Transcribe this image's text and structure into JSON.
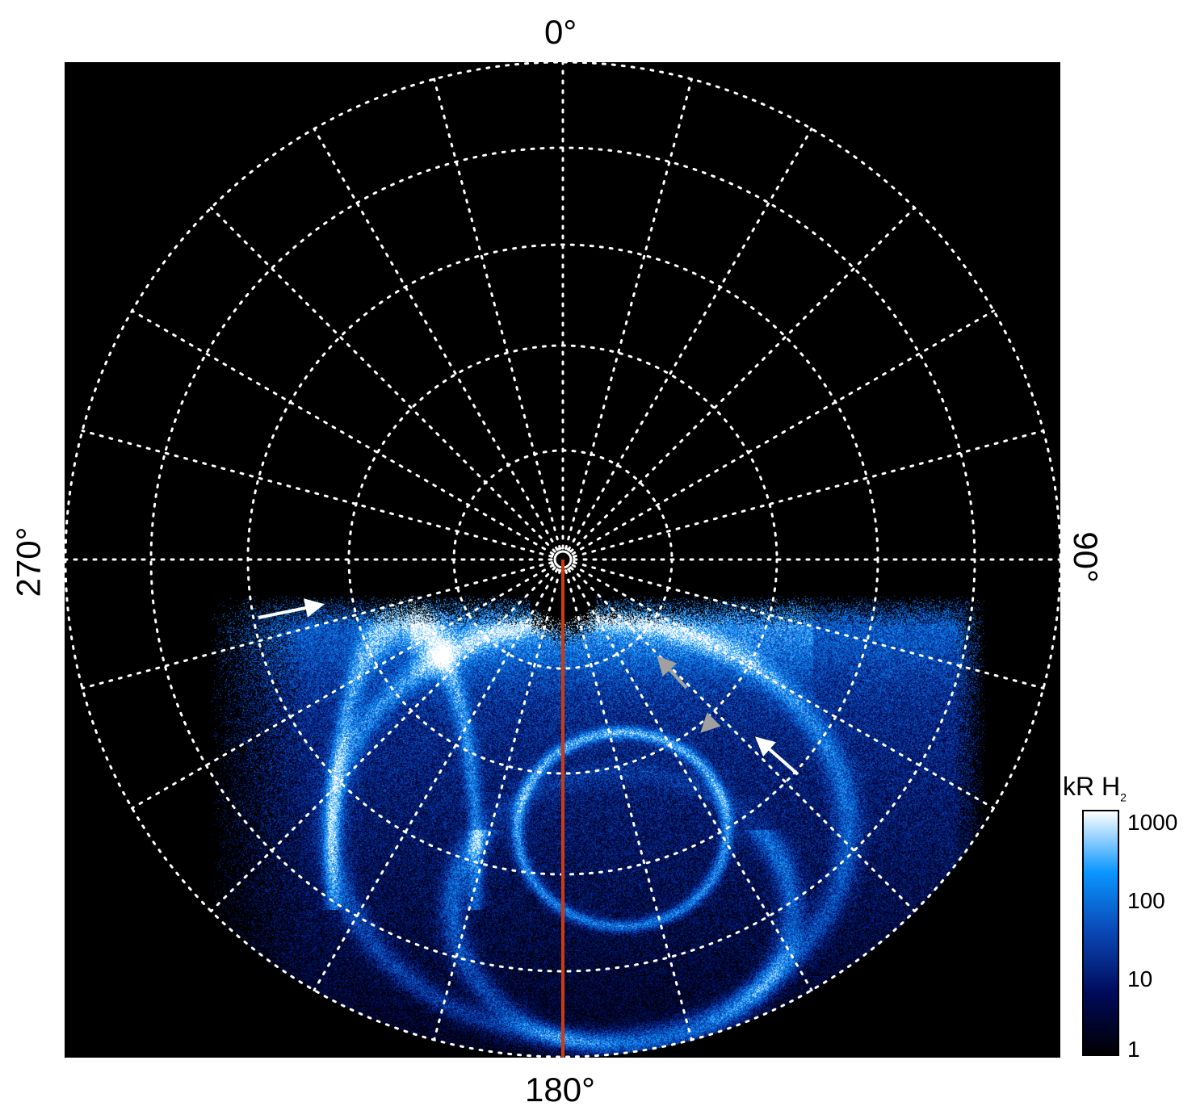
{
  "chart_data": {
    "type": "heatmap",
    "projection": "polar",
    "longitude_labels": {
      "top": "0°",
      "right": "90°",
      "bottom": "180°",
      "left": "270°"
    },
    "longitude_grid_step_deg": 15,
    "latitude_circles": 5,
    "grid": true,
    "grid_style": "dotted white",
    "highlighted_meridian": {
      "longitude": "180°",
      "color": "#d03a10"
    },
    "colorbar": {
      "label": "kR H",
      "label_subscript": "2",
      "scale": "log",
      "range": [
        1,
        1000
      ],
      "ticks": [
        "1000",
        "100",
        "10",
        "1"
      ],
      "colors": [
        "#000000",
        "#000a5a",
        "#0a46b4",
        "#0a96ff",
        "#ffffff"
      ]
    },
    "annotations": [
      {
        "type": "arrow",
        "color": "#ffffff"
      },
      {
        "type": "arrow",
        "color": "#a0a0a0"
      },
      {
        "type": "arrow",
        "color": "#a0a0a0"
      },
      {
        "type": "arrow",
        "color": "#ffffff"
      }
    ]
  }
}
